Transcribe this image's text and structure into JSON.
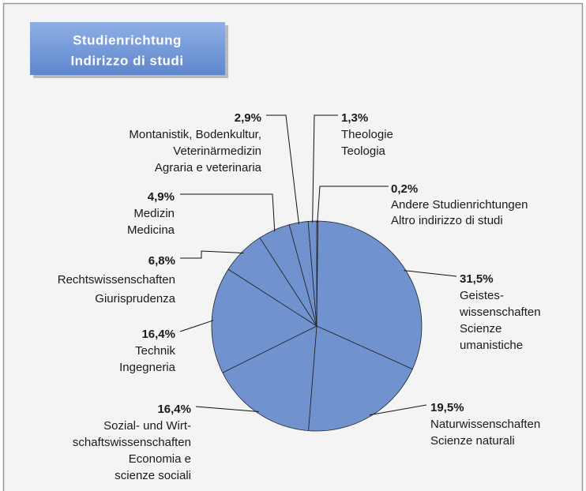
{
  "chart_data": {
    "type": "pie",
    "title": [
      "Studienrichtung",
      "Indirizzo di studi"
    ],
    "labels": [
      [
        "Andere Studienrichtungen",
        "Altro indirizzo di studi"
      ],
      [
        "Geistes-",
        "wissenschaften",
        "Scienze",
        "umanistiche"
      ],
      [
        "Naturwissenschaften",
        "Scienze naturali"
      ],
      [
        "Sozial- und Wirt-",
        "schaftswissenschaften",
        "Economia e",
        "scienze sociali"
      ],
      [
        "Technik",
        "Ingegneria"
      ],
      [
        "Rechtswissenschaften",
        "Giurisprudenza"
      ],
      [
        "Medizin",
        "Medicina"
      ],
      [
        "Montanistik, Bodenkultur,",
        "Veterinärmedizin",
        "Agraria e veterinaria"
      ],
      [
        "Theologie",
        "Teologia"
      ]
    ],
    "values": [
      0.2,
      31.5,
      19.5,
      16.4,
      16.4,
      6.8,
      4.9,
      2.9,
      1.3
    ],
    "value_labels": [
      "0,2%",
      "31,5%",
      "19,5%",
      "16,4%",
      "16,4%",
      "6,8%",
      "4,9%",
      "2,9%",
      "1,3%"
    ],
    "color": "#7093cf"
  }
}
